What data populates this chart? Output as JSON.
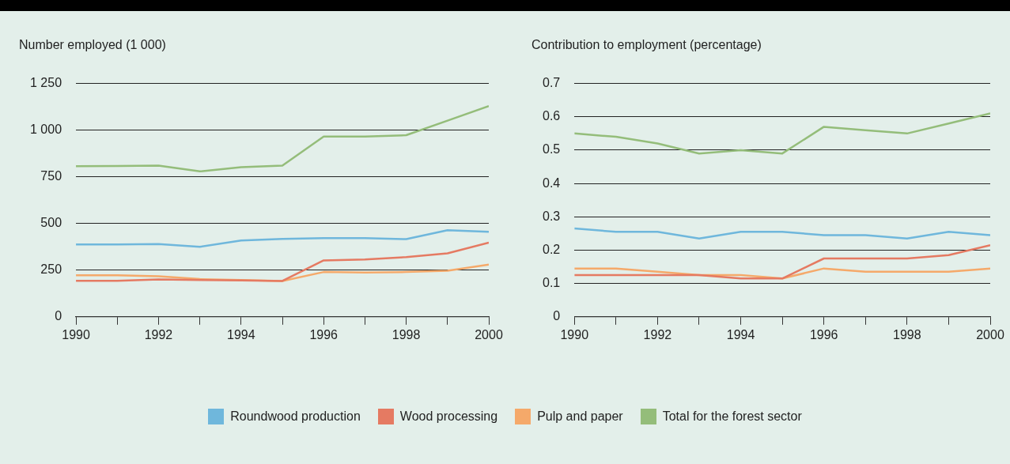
{
  "chart_data": [
    {
      "type": "line",
      "ylabel": "Number employed (1 000)",
      "x": [
        1990,
        1991,
        1992,
        1993,
        1994,
        1995,
        1996,
        1997,
        1998,
        1999,
        2000
      ],
      "xlim": [
        1990,
        2000
      ],
      "xticks": [
        1990,
        {
          "value": 1991,
          "label": null
        },
        1992,
        {
          "value": 1993,
          "label": null
        },
        1994,
        {
          "value": 1995,
          "label": null
        },
        1996,
        {
          "value": 1997,
          "label": null
        },
        1998,
        {
          "value": 1999,
          "label": null
        },
        2000
      ],
      "ylim": [
        0,
        1250
      ],
      "yticks": [
        0,
        250,
        500,
        750,
        {
          "value": 1000,
          "label": "1 000"
        },
        {
          "value": 1250,
          "label": "1 250"
        }
      ],
      "grid": "y",
      "legend": "bottom",
      "marker": "none",
      "line_style": "solid",
      "series": [
        {
          "name": "Roundwood production",
          "color": "#6fb7dc",
          "values": [
            388,
            388,
            390,
            375,
            409,
            417,
            422,
            422,
            416,
            464,
            455
          ]
        },
        {
          "name": "Wood processing",
          "color": "#e57a62",
          "values": [
            193,
            193,
            200,
            197,
            195,
            192,
            302,
            307,
            320,
            340,
            397
          ]
        },
        {
          "name": "Pulp and paper",
          "color": "#f5a96a",
          "values": [
            222,
            222,
            217,
            202,
            197,
            192,
            240,
            237,
            240,
            247,
            280
          ]
        },
        {
          "name": "Total for the forest sector",
          "color": "#94bd7a",
          "values": [
            807,
            808,
            810,
            779,
            802,
            810,
            966,
            966,
            973,
            1051,
            1129
          ]
        }
      ]
    },
    {
      "type": "line",
      "ylabel": "Contribution to employment (percentage)",
      "x": [
        1990,
        1991,
        1992,
        1993,
        1994,
        1995,
        1996,
        1997,
        1998,
        1999,
        2000
      ],
      "xlim": [
        1990,
        2000
      ],
      "xticks": [
        1990,
        {
          "value": 1991,
          "label": null
        },
        1992,
        {
          "value": 1993,
          "label": null
        },
        1994,
        {
          "value": 1995,
          "label": null
        },
        1996,
        {
          "value": 1997,
          "label": null
        },
        1998,
        {
          "value": 1999,
          "label": null
        },
        2000
      ],
      "ylim": [
        0,
        0.7
      ],
      "yticks": [
        0,
        0.1,
        0.2,
        0.3,
        0.4,
        0.5,
        0.6,
        0.7
      ],
      "grid": "y",
      "marker": "none",
      "line_style": "solid",
      "series": [
        {
          "color": "#6fb7dc",
          "values": [
            0.265,
            0.255,
            0.255,
            0.235,
            0.255,
            0.255,
            0.245,
            0.245,
            0.235,
            0.255,
            0.245
          ]
        },
        {
          "color": "#e57a62",
          "values": [
            0.125,
            0.125,
            0.125,
            0.125,
            0.115,
            0.115,
            0.175,
            0.175,
            0.175,
            0.185,
            0.215
          ]
        },
        {
          "color": "#f5a96a",
          "values": [
            0.145,
            0.145,
            0.135,
            0.125,
            0.125,
            0.115,
            0.145,
            0.135,
            0.135,
            0.135,
            0.145
          ]
        },
        {
          "color": "#94bd7a",
          "values": [
            0.55,
            0.54,
            0.52,
            0.49,
            0.5,
            0.49,
            0.57,
            0.56,
            0.55,
            0.58,
            0.61
          ]
        }
      ]
    }
  ]
}
